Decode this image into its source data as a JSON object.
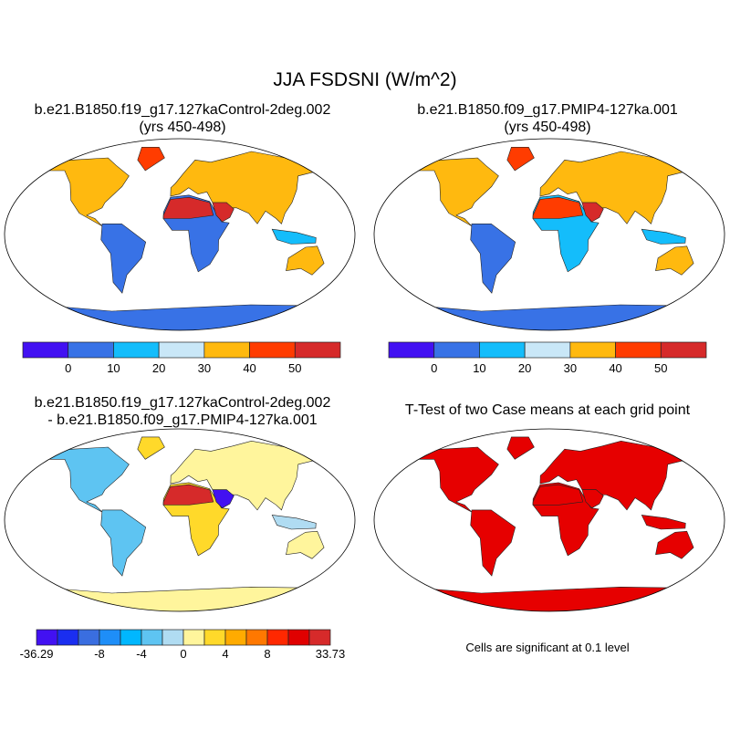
{
  "figure": {
    "title": "JJA FSDSNI (W/m^2)",
    "panels": [
      {
        "title_line1": "b.e21.B1850.f19_g17.127kaControl-2deg.002",
        "title_line2": "(yrs 450-498)"
      },
      {
        "title_line1": "b.e21.B1850.f09_g17.PMIP4-127ka.001",
        "title_line2": "(yrs 450-498)"
      },
      {
        "title_line1": "b.e21.B1850.f19_g17.127kaControl-2deg.002",
        "title_line2": "- b.e21.B1850.f09_g17.PMIP4-127ka.001"
      },
      {
        "title_line1": "T-Test of two Case means at each grid point",
        "title_line2": ""
      }
    ],
    "significance_note": "Cells are significant at 0.1 level"
  },
  "colorbars": {
    "case": {
      "colors": [
        "#4211f2",
        "#3872e6",
        "#14bdfb",
        "#c9e7f7",
        "#ffb90f",
        "#ff3c00",
        "#d62a2a"
      ],
      "labels": [
        "0",
        "10",
        "20",
        "30",
        "40",
        "50"
      ]
    },
    "diff": {
      "colors": [
        "#4211f2",
        "#1a2ef0",
        "#3a6ee0",
        "#1e8ef8",
        "#00b7ff",
        "#5ec4f2",
        "#b0dcf2",
        "#fff59c",
        "#ffd92a",
        "#ffab00",
        "#ff7800",
        "#ff2800",
        "#e00000",
        "#d62a2a"
      ],
      "labels": [
        "-36.29",
        "-8",
        "-4",
        "0",
        "4",
        "8",
        "33.73"
      ]
    },
    "significance_color": "#e60000"
  }
}
